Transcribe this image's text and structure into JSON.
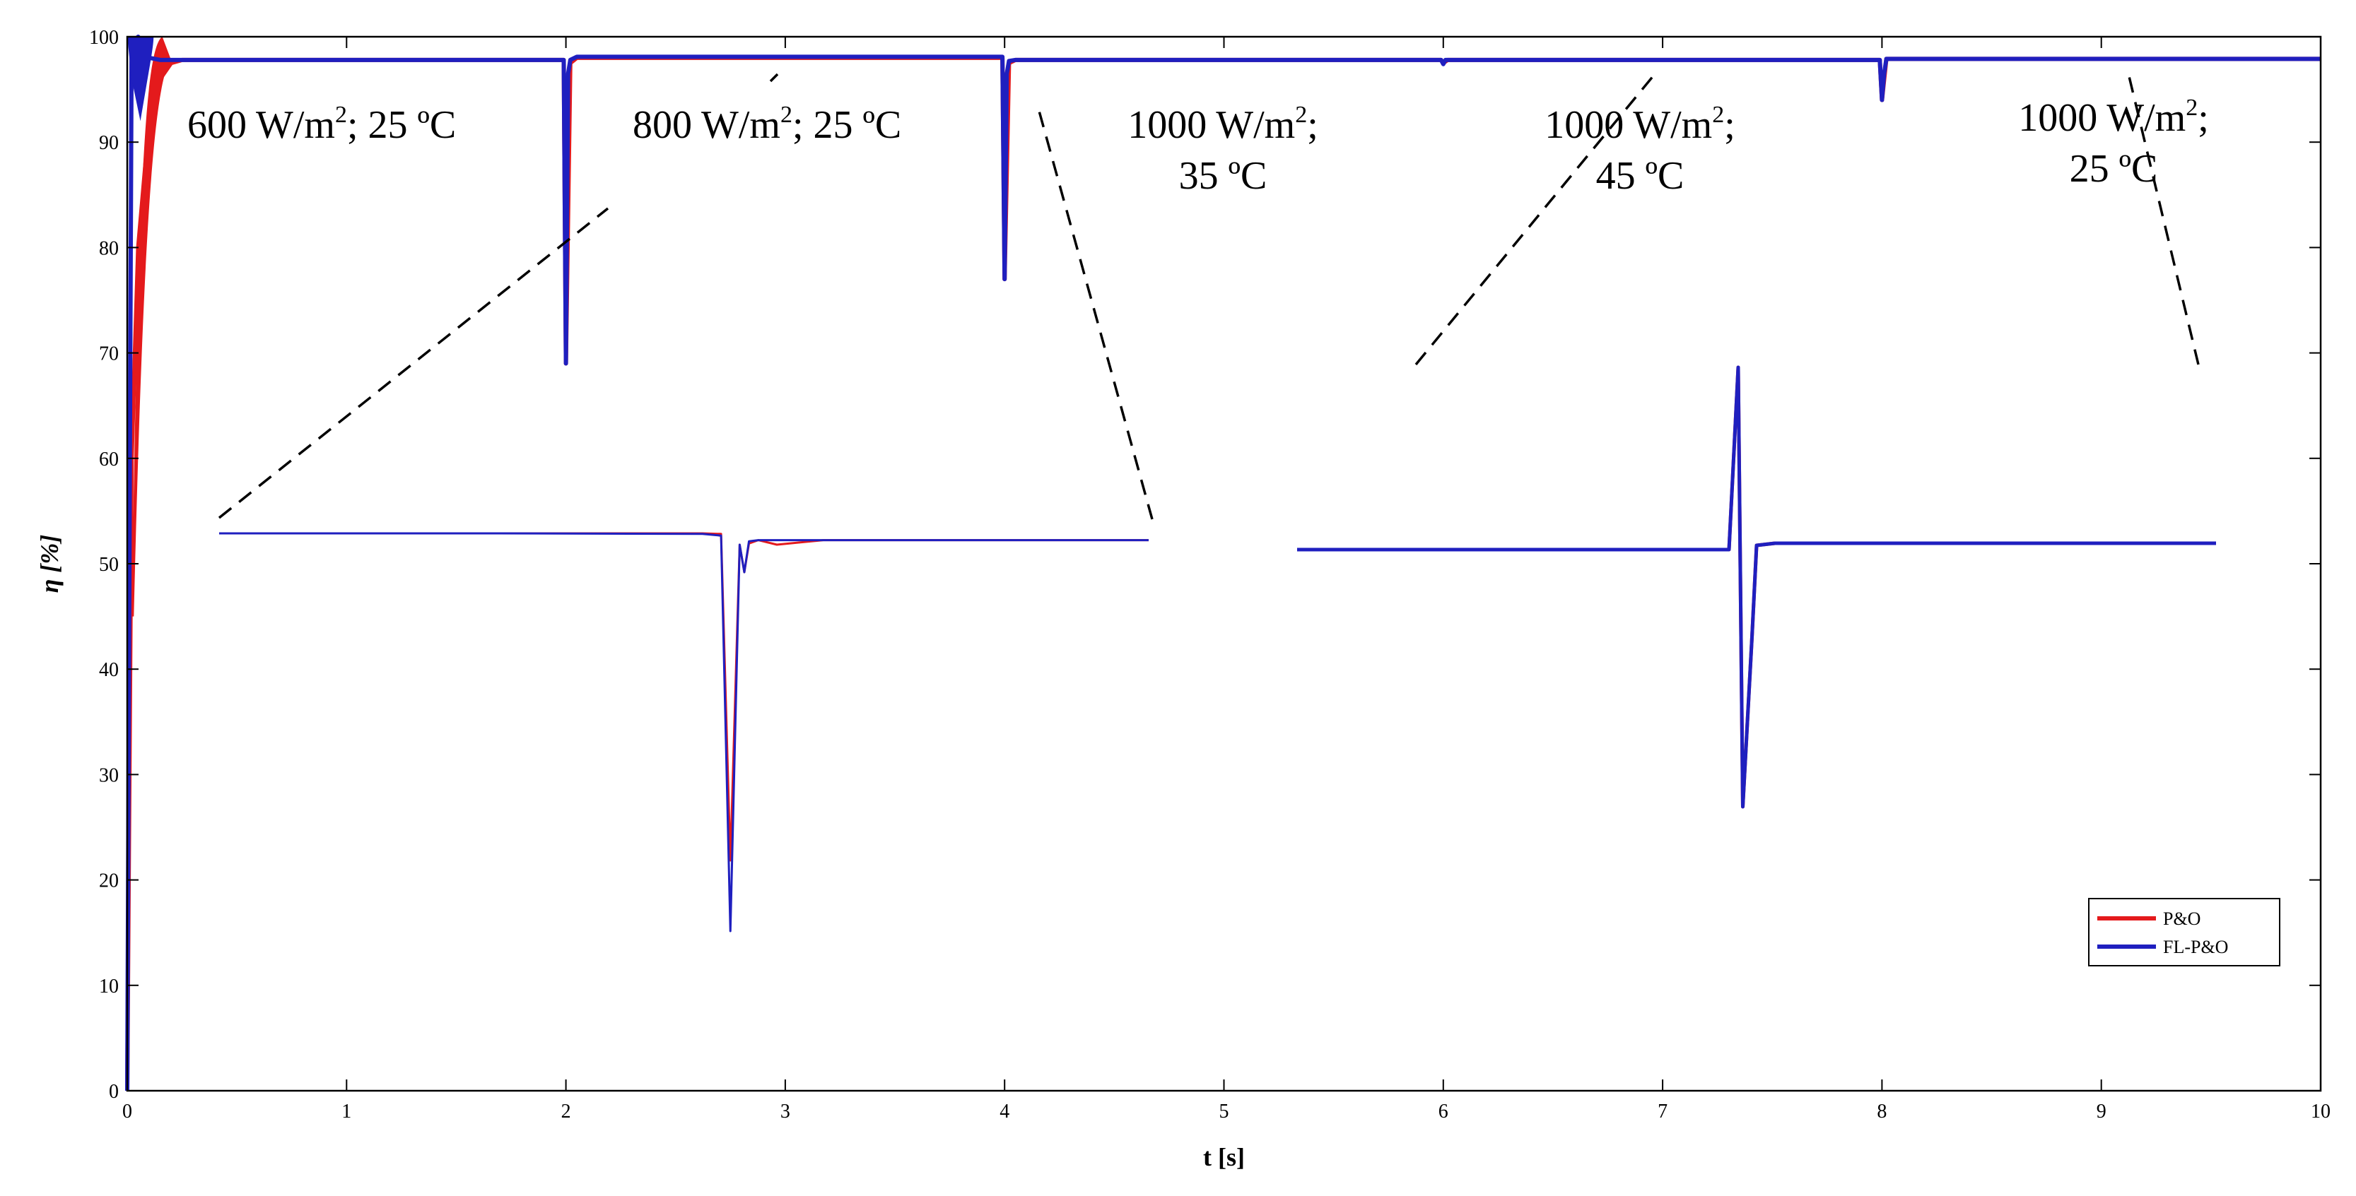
{
  "chart_data": {
    "type": "line",
    "xlabel": "t [s]",
    "ylabel": "η [%]",
    "xlim": [
      0,
      10
    ],
    "ylim": [
      0,
      100
    ],
    "xticks": [
      0,
      1,
      2,
      3,
      4,
      5,
      6,
      7,
      8,
      9,
      10
    ],
    "yticks": [
      0,
      10,
      20,
      30,
      40,
      50,
      60,
      70,
      80,
      90,
      100
    ],
    "legend_position": "bottom-right",
    "grid": false,
    "series": [
      {
        "name": "P&O",
        "color": "#e41a1c",
        "x": [
          0,
          0.02,
          0.05,
          0.1,
          0.15,
          0.2,
          0.25,
          1.99,
          2.0,
          2.02,
          2.05,
          2.1,
          3.99,
          4.0,
          4.02,
          4.05,
          5.99,
          6.0,
          6.02,
          7.99,
          8.0,
          8.02,
          10.0
        ],
        "y": [
          0,
          60,
          80,
          92,
          96,
          97.5,
          97.8,
          97.8,
          69,
          97.5,
          98.0,
          98.0,
          98.0,
          77,
          97.5,
          97.8,
          97.8,
          97.5,
          97.8,
          97.8,
          94,
          97.9,
          97.9
        ]
      },
      {
        "name": "FL-P&O",
        "color": "#1f1fbf",
        "x": [
          0,
          0.01,
          0.02,
          0.05,
          0.1,
          0.15,
          0.2,
          1.99,
          2.0,
          2.01,
          2.02,
          2.05,
          3.99,
          4.0,
          4.01,
          4.02,
          4.05,
          5.99,
          6.0,
          6.01,
          7.99,
          8.0,
          8.01,
          8.02,
          10.0
        ],
        "y": [
          0,
          50,
          99.5,
          100,
          98,
          97.8,
          97.8,
          97.8,
          69,
          96.5,
          97.8,
          98.1,
          98.1,
          77,
          96.5,
          97.7,
          97.8,
          97.8,
          97.4,
          97.8,
          97.8,
          94,
          96.5,
          97.9,
          97.9
        ]
      }
    ],
    "annotations": [
      {
        "lines": [
          "600 W/m^2; 25 ºC"
        ]
      },
      {
        "lines": [
          "800 W/m^2; 25 ºC"
        ]
      },
      {
        "lines": [
          "1000 W/m^2;",
          "35 ºC"
        ]
      },
      {
        "lines": [
          "1000 W/m^2;",
          "45 ºC"
        ]
      },
      {
        "lines": [
          "1000 W/m^2;",
          "25 ºC"
        ]
      }
    ],
    "insets": [
      {
        "x": [
          0,
          0.3,
          0.52,
          0.54,
          0.55,
          0.56,
          0.565,
          0.57,
          0.58,
          0.6,
          0.65,
          1.0
        ],
        "po_y": [
          2.5,
          2.5,
          2.5,
          2.45,
          0.5,
          1.5,
          1.0,
          1.6,
          1.9,
          1.5,
          1.9,
          1.9
        ],
        "fl_y": [
          2.5,
          2.5,
          2.45,
          2.3,
          0.0,
          1.5,
          1.0,
          1.8,
          1.9,
          1.9,
          1.9,
          1.9
        ]
      },
      {
        "x": [
          0,
          0.2,
          0.45,
          0.47,
          0.48,
          0.485,
          0.49,
          0.495,
          0.5,
          0.52,
          0.55,
          1.0
        ],
        "po_y": [
          2.4,
          2.4,
          2.4,
          2.4,
          5.5,
          0.0,
          1.0,
          2.0,
          2.5,
          2.55,
          2.55,
          2.55
        ],
        "fl_y": [
          2.4,
          2.4,
          2.4,
          2.4,
          5.5,
          0.0,
          1.0,
          2.0,
          2.5,
          2.55,
          2.55,
          2.55
        ]
      }
    ]
  },
  "legend": {
    "items": [
      {
        "label": "P&O",
        "color": "#e41a1c"
      },
      {
        "label": "FL-P&O",
        "color": "#1f1fbf"
      }
    ]
  },
  "x_tick_labels": [
    "0",
    "1",
    "2",
    "3",
    "4",
    "5",
    "6",
    "7",
    "8",
    "9",
    "10"
  ],
  "y_tick_labels": [
    "0",
    "10",
    "20",
    "30",
    "40",
    "50",
    "60",
    "70",
    "80",
    "90",
    "100"
  ]
}
